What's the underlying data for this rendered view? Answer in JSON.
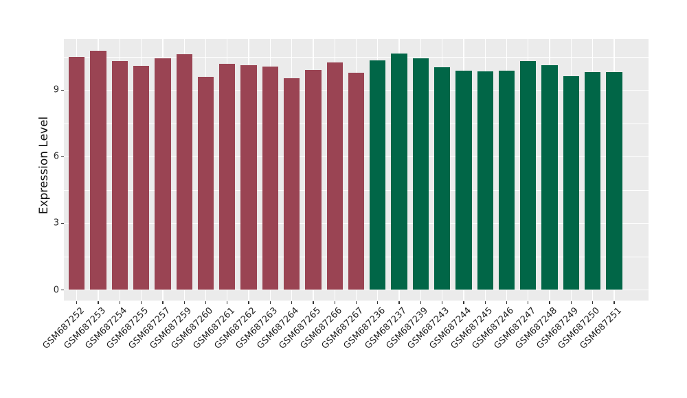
{
  "chart_data": {
    "type": "bar",
    "title": "",
    "xlabel": "",
    "ylabel": "Expression Level",
    "yticks": [
      0,
      3,
      6,
      9
    ],
    "ylim": [
      -0.55,
      11.3
    ],
    "grid": true,
    "legend": false,
    "panel_background": "#EBEBEB",
    "gridline_color": "#FFFFFF",
    "categories": [
      "GSM687252",
      "GSM687253",
      "GSM687254",
      "GSM687255",
      "GSM687257",
      "GSM687259",
      "GSM687260",
      "GSM687261",
      "GSM687262",
      "GSM687263",
      "GSM687264",
      "GSM687265",
      "GSM687266",
      "GSM687267",
      "GSM687236",
      "GSM687237",
      "GSM687239",
      "GSM687243",
      "GSM687244",
      "GSM687245",
      "GSM687246",
      "GSM687247",
      "GSM687248",
      "GSM687249",
      "GSM687250",
      "GSM687251"
    ],
    "values": [
      10.49,
      10.76,
      10.3,
      10.1,
      10.42,
      10.61,
      9.6,
      10.2,
      10.13,
      10.06,
      9.55,
      9.9,
      10.26,
      9.78,
      10.33,
      10.64,
      10.44,
      10.04,
      9.88,
      9.84,
      9.88,
      10.3,
      10.12,
      9.63,
      9.82,
      9.81
    ],
    "groups": [
      {
        "name": "maroon-group",
        "color": "#9A4453",
        "start": 0,
        "end": 13
      },
      {
        "name": "green-group",
        "color": "#016647",
        "start": 14,
        "end": 25
      }
    ]
  }
}
